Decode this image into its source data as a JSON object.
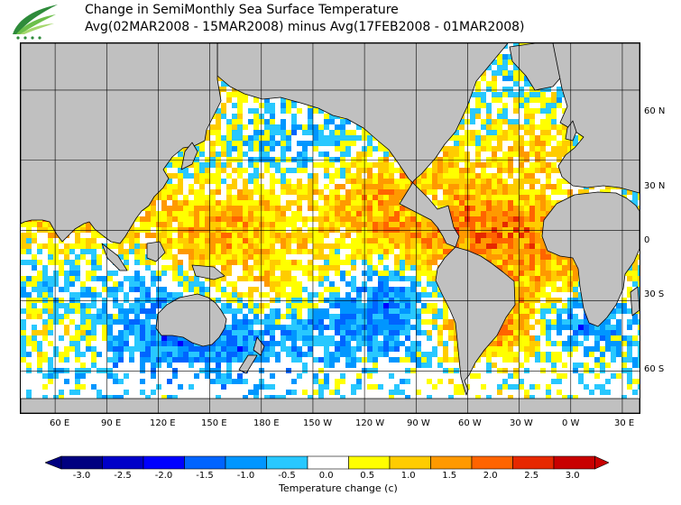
{
  "header": {
    "title_line1": "Change in SemiMonthly Sea Surface Temperature",
    "title_line2": "Avg(02MAR2008 - 15MAR2008) minus Avg(17FEB2008 - 01MAR2008)"
  },
  "map": {
    "projection": "equirectangular",
    "lon_range": [
      40,
      400
    ],
    "lat_range": [
      -78,
      80
    ],
    "land_color": "#c0c0c0",
    "ice_color": "#dcdcdc",
    "latitude_labels": [
      "60 N",
      "30 N",
      "0",
      "30 S",
      "60 S"
    ],
    "latitude_values": [
      60,
      30,
      0,
      -30,
      -60
    ],
    "longitude_labels": [
      "60 E",
      "90 E",
      "120 E",
      "150 E",
      "180 E",
      "150 W",
      "120 W",
      "90 W",
      "60 W",
      "30 W",
      "0 W",
      "30 E"
    ],
    "longitude_values": [
      60,
      90,
      120,
      150,
      180,
      210,
      240,
      270,
      300,
      330,
      360,
      390
    ]
  },
  "colorbar": {
    "ticks": [
      "-3.0",
      "-2.5",
      "-2.0",
      "-1.5",
      "-1.0",
      "-0.5",
      "0.0",
      "0.5",
      "1.0",
      "1.5",
      "2.0",
      "2.5",
      "3.0"
    ],
    "colors": [
      "#000080",
      "#0000c8",
      "#0000ff",
      "#0064ff",
      "#0096ff",
      "#28c8ff",
      "#ffffff",
      "#ffff00",
      "#ffcc00",
      "#ff9900",
      "#ff6400",
      "#e62800",
      "#c80000"
    ],
    "label": "Temperature change  (c)"
  }
}
